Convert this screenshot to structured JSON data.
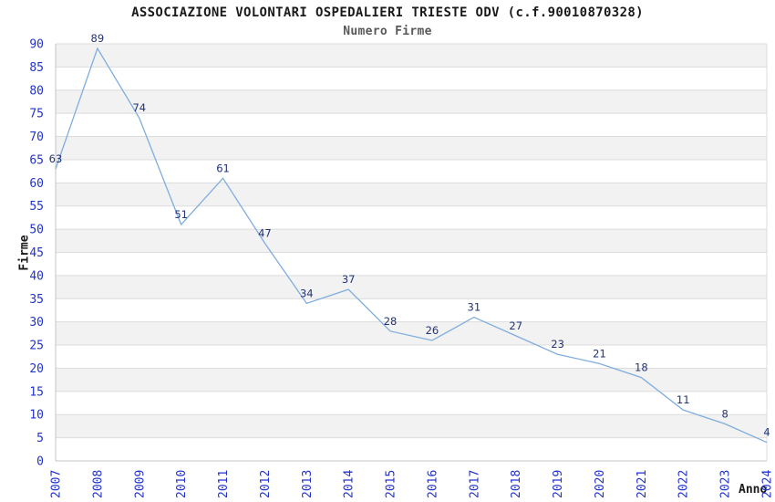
{
  "chart_data": {
    "type": "line",
    "title": "ASSOCIAZIONE VOLONTARI OSPEDALIERI TRIESTE ODV (c.f.90010870328)",
    "subtitle": "Numero Firme",
    "xlabel": "Anno",
    "ylabel": "Firme",
    "categories": [
      "2007",
      "2008",
      "2009",
      "2010",
      "2011",
      "2012",
      "2013",
      "2014",
      "2015",
      "2016",
      "2017",
      "2018",
      "2019",
      "2020",
      "2021",
      "2022",
      "2023",
      "2024"
    ],
    "series": [
      {
        "name": "Numero Firme",
        "values": [
          63,
          89,
          74,
          51,
          61,
          47,
          34,
          37,
          28,
          26,
          31,
          27,
          23,
          21,
          18,
          11,
          8,
          4
        ]
      }
    ],
    "ylim": [
      0,
      90
    ],
    "ytick_step": 5,
    "yticks": [
      0,
      5,
      10,
      15,
      20,
      25,
      30,
      35,
      40,
      45,
      50,
      55,
      60,
      65,
      70,
      75,
      80,
      85,
      90
    ],
    "grid": "horizontal-bands",
    "legend": "none",
    "colors": {
      "line": "#7fadde",
      "point_label": "#223377",
      "tick_label": "#2233cc",
      "grid": "#dcdcdc",
      "axis": "#c4c4c4",
      "band_gray": "#f2f2f2",
      "band_white": "#ffffff",
      "title": "#1a1a1a",
      "subtitle": "#595959",
      "background": "#ffffff"
    }
  }
}
